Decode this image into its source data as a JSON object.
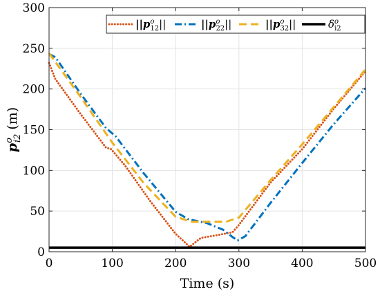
{
  "chart_data": {
    "type": "line",
    "xlabel": "Time (s)",
    "ylabel": "p",
    "ylabel_sup": "o",
    "ylabel_sub": "i2",
    "ylabel_unit": "(m)",
    "xlim": [
      0,
      500
    ],
    "ylim": [
      0,
      300
    ],
    "xticks": [
      0,
      100,
      200,
      300,
      400,
      500
    ],
    "yticks": [
      0,
      50,
      100,
      150,
      200,
      250,
      300
    ],
    "grid": true,
    "legend_position": "top",
    "series": [
      {
        "name": "||p12o||",
        "legend": {
          "pre": "||",
          "base": "p",
          "sup": "o",
          "sub": "12",
          "post": "||"
        },
        "color": "#d95319",
        "dash": "dotted",
        "x": [
          0,
          10,
          50,
          90,
          98,
          120,
          160,
          200,
          222,
          240,
          270,
          290,
          300,
          350,
          400,
          450,
          500
        ],
        "y": [
          232,
          212,
          169,
          128,
          126,
          106,
          62,
          22,
          6,
          17,
          21,
          24,
          33,
          85,
          126,
          176,
          222
        ]
      },
      {
        "name": "||p22o||",
        "legend": {
          "pre": "||",
          "base": "p",
          "sup": "o",
          "sub": "22",
          "post": "||"
        },
        "color": "#0072bd",
        "dash": "dashdot",
        "x": [
          0,
          10,
          50,
          90,
          105,
          150,
          200,
          220,
          250,
          275,
          290,
          298,
          310,
          350,
          400,
          450,
          500
        ],
        "y": [
          243,
          239,
          194,
          152,
          142,
          96,
          49,
          40,
          35,
          27,
          18,
          14,
          19,
          60,
          109,
          157,
          201
        ]
      },
      {
        "name": "||p32o||",
        "legend": {
          "pre": "||",
          "base": "p",
          "sup": "o",
          "sub": "32",
          "post": "||"
        },
        "color": "#edb120",
        "dash": "dashed",
        "x": [
          0,
          50,
          100,
          150,
          200,
          225,
          250,
          280,
          300,
          350,
          400,
          450,
          500
        ],
        "y": [
          244,
          190,
          134,
          84,
          43,
          37,
          37,
          37,
          42,
          88,
          132,
          178,
          224
        ]
      },
      {
        "name": "δi2o",
        "legend": {
          "pre": "",
          "base": "δ",
          "sup": "o",
          "sub": "i2",
          "post": ""
        },
        "color": "#000000",
        "dash": "solid",
        "x": [
          0,
          500
        ],
        "y": [
          5,
          5
        ]
      }
    ]
  }
}
